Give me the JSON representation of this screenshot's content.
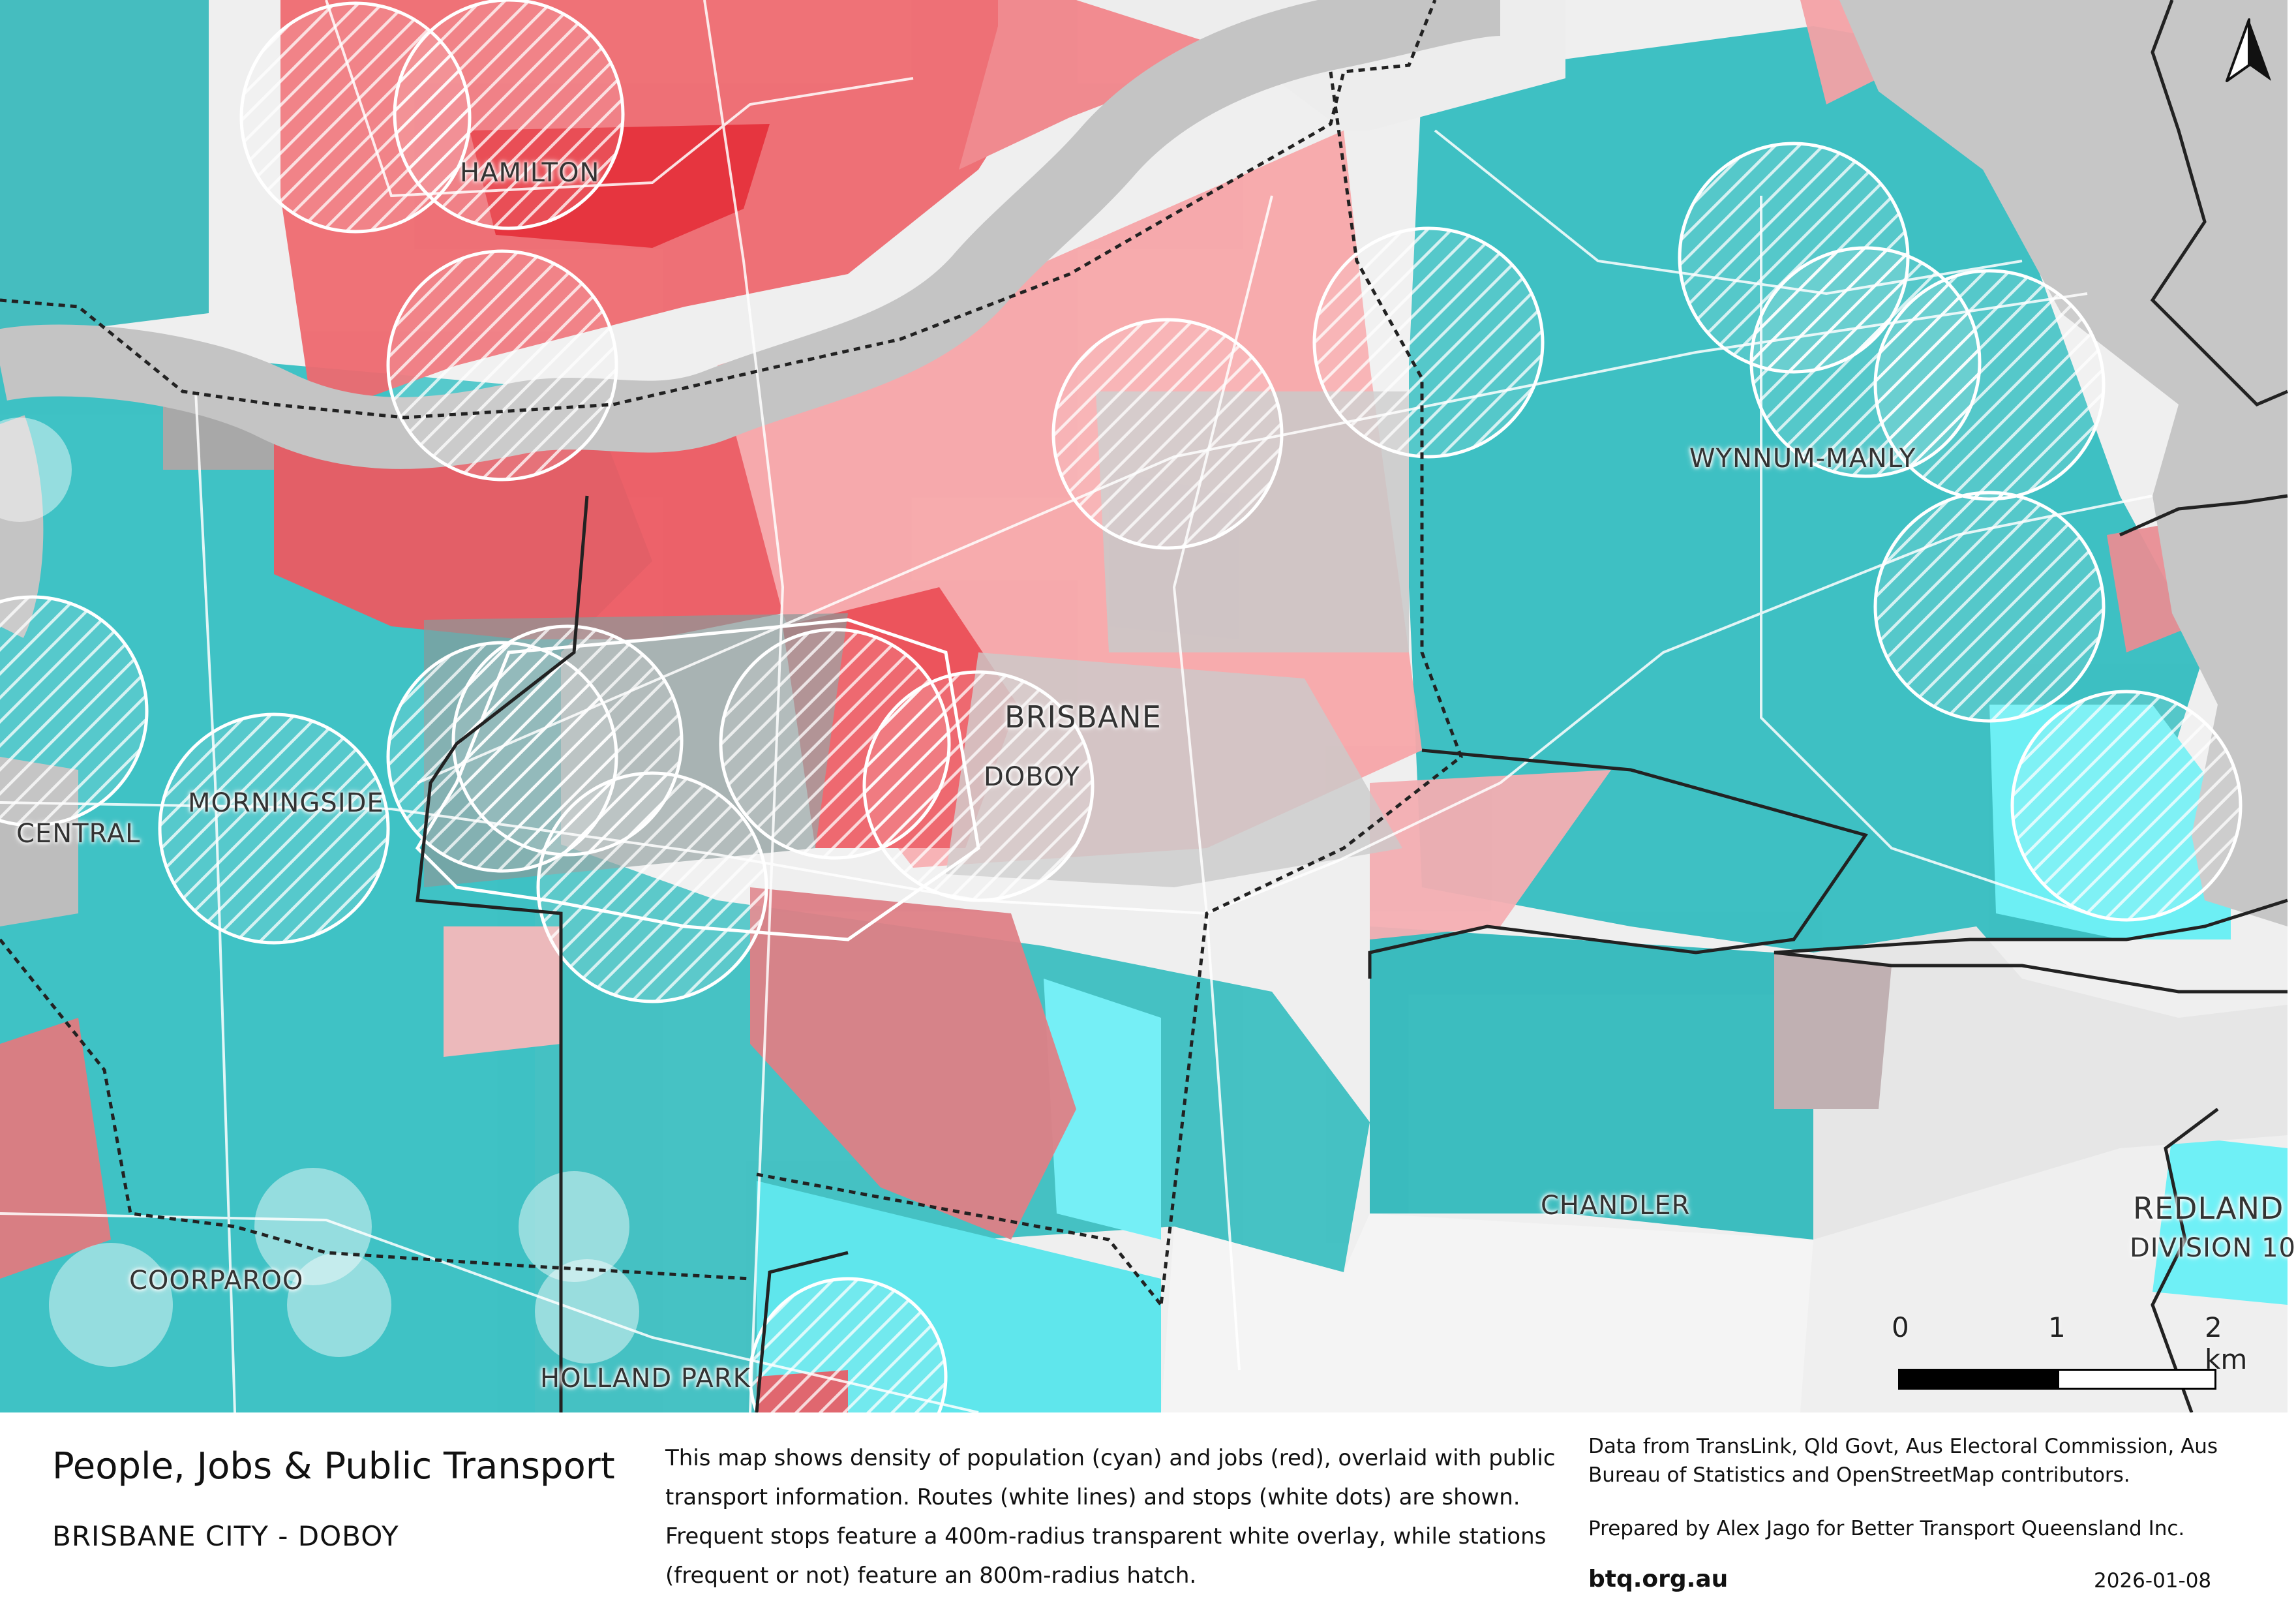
{
  "map": {
    "places": {
      "hamilton": "HAMILTON",
      "brisbane": "BRISBANE",
      "doboy": "DOBOY",
      "morningside": "MORNINGSIDE",
      "central": "CENTRAL",
      "wynnum_manly": "WYNNUM-MANLY",
      "coorparoo": "COORPAROO",
      "holland_park": "HOLLAND PARK",
      "chandler": "CHANDLER",
      "redland": "REDLAND",
      "division_10": "DIVISION 10"
    },
    "scale": {
      "label_0": "0",
      "label_1": "1",
      "label_2": "2 km"
    },
    "north_icon": "north-arrow-icon",
    "colors": {
      "population": "#2cbcbf",
      "population_high": "#4fe8f0",
      "jobs": "#f0606a",
      "jobs_high": "#e8333d",
      "jobs_low": "#f6b6b9",
      "river": "#c4c4c4",
      "no_data": "#dcdcdc"
    }
  },
  "footer": {
    "title": "People, Jobs & Public Transport",
    "subtitle": "BRISBANE CITY - DOBOY",
    "description": "This map shows density of population (cyan) and jobs (red), overlaid with public transport information. Routes (white lines) and stops (white dots) are shown. Frequent stops feature a 400m-radius transparent white overlay, while stations (frequent or not) feature an 800m-radius hatch.",
    "credits": "Data from TransLink,  Qld Govt,  Aus Electoral Commission, Aus Bureau of Statistics and OpenStreetMap contributors.",
    "prepared_by": "Prepared by Alex Jago for Better Transport Queensland Inc.",
    "website": "btq.org.au",
    "date": "2026-01-08"
  }
}
